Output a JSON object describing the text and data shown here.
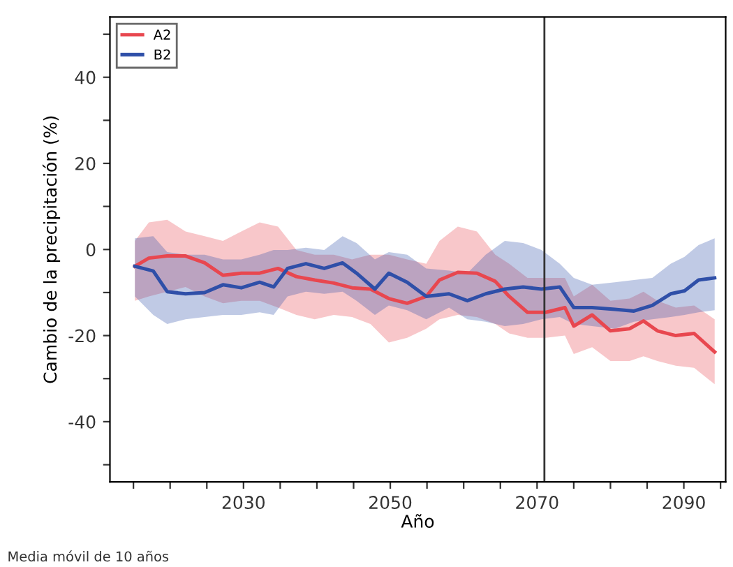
{
  "chart_data": {
    "type": "line",
    "xlabel": "Año",
    "ylabel": "Cambio de la precipitación (%)",
    "annotations": [
      "Media móvil de 10 años"
    ],
    "xlim": [
      2011.8,
      2095.7
    ],
    "ylim": [
      -54,
      54
    ],
    "xticks": [
      {
        "value": 2015,
        "label": null
      },
      {
        "value": 2020,
        "label": null
      },
      {
        "value": 2025,
        "label": null
      },
      2030,
      {
        "value": 2035,
        "label": null
      },
      {
        "value": 2040,
        "label": null
      },
      {
        "value": 2045,
        "label": null
      },
      2050,
      {
        "value": 2055,
        "label": null
      },
      {
        "value": 2060,
        "label": null
      },
      {
        "value": 2065,
        "label": null
      },
      2070,
      {
        "value": 2075,
        "label": null
      },
      {
        "value": 2080,
        "label": null
      },
      {
        "value": 2085,
        "label": null
      },
      2090,
      {
        "value": 2095,
        "label": null
      }
    ],
    "yticks": [
      {
        "value": -50,
        "label": null
      },
      -40,
      {
        "value": -30,
        "label": null
      },
      -20,
      {
        "value": -10,
        "label": null
      },
      0,
      {
        "value": 10,
        "label": null
      },
      20,
      {
        "value": 30,
        "label": null
      },
      40,
      {
        "value": 50,
        "label": null
      }
    ],
    "grid": false,
    "legend": "top left",
    "marker": "none",
    "line_style": "solid",
    "ref_lines": [
      {
        "axis": "x",
        "value": 2071,
        "color": "#333333"
      }
    ],
    "series": [
      {
        "name": "A2",
        "color": "#e8474f",
        "x": [
          2015.2,
          2017.1,
          2019.6,
          2022.1,
          2024.7,
          2027.2,
          2029.7,
          2032.2,
          2034.7,
          2037.2,
          2039.7,
          2042.3,
          2044.8,
          2047.3,
          2049.8,
          2052.3,
          2054.9,
          2056.7,
          2059.2,
          2061.8,
          2064.3,
          2066.2,
          2068.7,
          2071.2,
          2073.8,
          2075,
          2077.5,
          2080,
          2082.6,
          2084.5,
          2086.4,
          2088.9,
          2091.4,
          2094.2
        ],
        "values": [
          -3.9,
          -2,
          -1.5,
          -1.5,
          -3.1,
          -6,
          -5.5,
          -5.5,
          -4.4,
          -6.3,
          -7.1,
          -7.8,
          -8.9,
          -9.2,
          -11.4,
          -12.5,
          -10.9,
          -7.1,
          -5.3,
          -5.5,
          -7.4,
          -10.9,
          -14.6,
          -14.6,
          -13.5,
          -17.8,
          -15.2,
          -18.9,
          -18.4,
          -16.6,
          -18.9,
          -20,
          -19.5,
          -23.8
        ],
        "upper": [
          2,
          6.3,
          6.9,
          4.2,
          3.1,
          2,
          4.2,
          6.3,
          5.3,
          -0.1,
          -1.2,
          -1.2,
          -2.3,
          -1.2,
          -1.2,
          -2.3,
          -3.3,
          2,
          5.3,
          4.2,
          -1.2,
          -3.3,
          -6.6,
          -6.6,
          -6.6,
          -10.9,
          -8.2,
          -11.9,
          -11.4,
          -9.8,
          -11.9,
          -13.5,
          -13,
          -16.2
        ],
        "lower": [
          -11.9,
          -10.9,
          -9.8,
          -8.7,
          -10.9,
          -12.5,
          -11.9,
          -11.9,
          -13.5,
          -15.2,
          -16.2,
          -15.2,
          -15.7,
          -17.3,
          -21.6,
          -20.5,
          -18.4,
          -16.2,
          -15.2,
          -15.7,
          -17.3,
          -19.5,
          -20.5,
          -20.5,
          -20,
          -24.3,
          -22.7,
          -25.9,
          -25.9,
          -24.8,
          -25.9,
          -27,
          -27.5,
          -31.3
        ]
      },
      {
        "name": "B2",
        "color": "#2f4fa8",
        "x": [
          2015.2,
          2017.7,
          2019.6,
          2022.1,
          2024.7,
          2027.2,
          2029.7,
          2032.2,
          2034.1,
          2036,
          2038.5,
          2041,
          2043.5,
          2045.4,
          2047.9,
          2049.8,
          2052.3,
          2054.9,
          2058,
          2060.5,
          2063,
          2065.6,
          2068.1,
          2070.6,
          2073.1,
          2075,
          2077.5,
          2080.6,
          2083.2,
          2085.7,
          2088.2,
          2090.1,
          2092,
          2094.2
        ],
        "values": [
          -3.9,
          -5,
          -9.8,
          -10.3,
          -10,
          -8.2,
          -8.9,
          -7.6,
          -8.7,
          -4.4,
          -3.3,
          -4.4,
          -3.1,
          -5.5,
          -9.2,
          -5.5,
          -7.6,
          -10.9,
          -10.3,
          -11.9,
          -10.3,
          -9.2,
          -8.7,
          -9.2,
          -8.7,
          -13.5,
          -13.5,
          -13.9,
          -14.3,
          -13,
          -10.3,
          -9.6,
          -7.1,
          -6.6
        ],
        "upper": [
          2.6,
          3.1,
          -0.6,
          -1.2,
          -1.2,
          -2.3,
          -2.3,
          -1.2,
          -0.1,
          -0.1,
          0.4,
          -0.1,
          3.1,
          1.5,
          -2.3,
          -0.6,
          -1.2,
          -4.4,
          -4.9,
          -5.5,
          -1.2,
          2,
          1.5,
          -0.1,
          -3.3,
          -6.6,
          -8.2,
          -7.6,
          -7.1,
          -6.6,
          -3.3,
          -1.7,
          1,
          2.6
        ],
        "lower": [
          -10.9,
          -15.2,
          -17.3,
          -16.2,
          -15.7,
          -15.2,
          -15.2,
          -14.6,
          -15.2,
          -10.9,
          -9.8,
          -10.3,
          -9.8,
          -11.9,
          -15.2,
          -13,
          -14.1,
          -16.2,
          -13.5,
          -16.2,
          -16.8,
          -17.8,
          -17.3,
          -16.2,
          -15.7,
          -17.3,
          -17.8,
          -18.4,
          -16.8,
          -16.2,
          -15.7,
          -15.2,
          -14.6,
          -14.1
        ]
      }
    ]
  }
}
